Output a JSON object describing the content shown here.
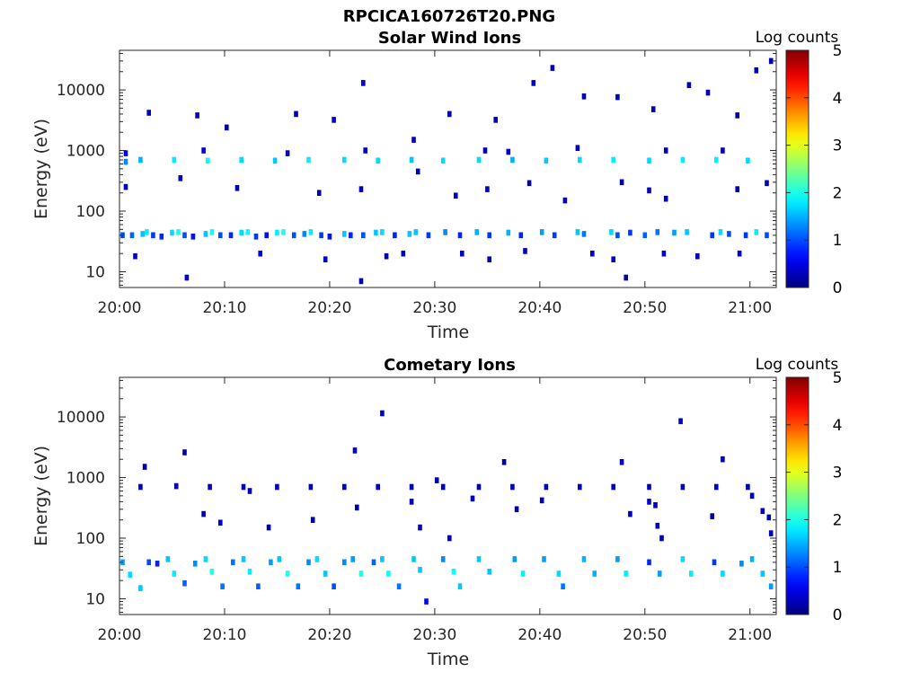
{
  "figure": {
    "title": "RPCICA160726T20.PNG"
  },
  "chart_data": [
    {
      "type": "heatmap",
      "title": "Solar Wind Ions",
      "xlabel": "Time",
      "ylabel": "Energy (eV)",
      "x_ticks": [
        "20:00",
        "20:10",
        "20:20",
        "20:30",
        "20:40",
        "20:50",
        "21:00"
      ],
      "x_tick_minutes": [
        0,
        10,
        20,
        30,
        40,
        50,
        60
      ],
      "xlim_minutes": [
        0,
        62.5
      ],
      "y_scale": "log",
      "ylim": [
        5.5,
        45000
      ],
      "y_ticks": [
        "10",
        "100",
        "1000",
        "10000"
      ],
      "y_tick_values": [
        10,
        100,
        1000,
        10000
      ],
      "colorbar": {
        "label": "Log counts",
        "ticks": [
          "0",
          "1",
          "2",
          "3",
          "4",
          "5"
        ],
        "range": [
          0,
          5
        ],
        "colormap": "jet"
      },
      "cells": [
        [
          0.3,
          40,
          1.0
        ],
        [
          1.2,
          40,
          1.1
        ],
        [
          2.2,
          42,
          1.6
        ],
        [
          2.6,
          45,
          1.8
        ],
        [
          3.2,
          40,
          0.9
        ],
        [
          4.0,
          38,
          0.8
        ],
        [
          5.0,
          44,
          1.7
        ],
        [
          5.6,
          45,
          2.0
        ],
        [
          6.2,
          40,
          1.0
        ],
        [
          7.0,
          38,
          0.7
        ],
        [
          8.2,
          42,
          1.6
        ],
        [
          8.8,
          45,
          1.9
        ],
        [
          9.6,
          40,
          1.0
        ],
        [
          10.6,
          40,
          0.8
        ],
        [
          11.6,
          44,
          1.7
        ],
        [
          12.2,
          45,
          1.9
        ],
        [
          13.0,
          38,
          0.9
        ],
        [
          14.0,
          40,
          0.7
        ],
        [
          15.0,
          44,
          1.8
        ],
        [
          15.6,
          45,
          2.0
        ],
        [
          16.6,
          40,
          1.0
        ],
        [
          17.6,
          42,
          1.3
        ],
        [
          18.2,
          45,
          1.8
        ],
        [
          19.2,
          40,
          0.9
        ],
        [
          20.0,
          38,
          0.7
        ],
        [
          21.4,
          42,
          1.6
        ],
        [
          22.0,
          40,
          0.8
        ],
        [
          23.2,
          40,
          1.0
        ],
        [
          24.4,
          44,
          1.6
        ],
        [
          25.0,
          45,
          1.7
        ],
        [
          26.2,
          40,
          0.8
        ],
        [
          27.6,
          42,
          1.6
        ],
        [
          28.2,
          45,
          1.6
        ],
        [
          29.4,
          40,
          0.9
        ],
        [
          31.0,
          45,
          1.3
        ],
        [
          32.4,
          40,
          0.8
        ],
        [
          34.0,
          45,
          1.5
        ],
        [
          35.2,
          40,
          0.9
        ],
        [
          37.0,
          44,
          1.5
        ],
        [
          38.2,
          40,
          0.8
        ],
        [
          40.2,
          45,
          1.4
        ],
        [
          41.4,
          40,
          0.9
        ],
        [
          43.6,
          45,
          1.6
        ],
        [
          44.2,
          42,
          1.2
        ],
        [
          46.8,
          45,
          1.7
        ],
        [
          47.4,
          40,
          1.0
        ],
        [
          48.6,
          44,
          0.9
        ],
        [
          50.0,
          40,
          1.1
        ],
        [
          51.2,
          45,
          1.2
        ],
        [
          52.8,
          44,
          1.4
        ],
        [
          54.0,
          45,
          1.6
        ],
        [
          56.4,
          40,
          0.9
        ],
        [
          57.2,
          45,
          1.7
        ],
        [
          58.0,
          42,
          1.0
        ],
        [
          59.6,
          40,
          0.9
        ],
        [
          60.6,
          45,
          1.8
        ],
        [
          61.6,
          40,
          1.0
        ],
        [
          1.5,
          18,
          0.4
        ],
        [
          6.4,
          8,
          0.3
        ],
        [
          13.4,
          20,
          0.5
        ],
        [
          19.6,
          16,
          0.4
        ],
        [
          23.0,
          7,
          0.3
        ],
        [
          25.4,
          18,
          0.2
        ],
        [
          27.0,
          20,
          0.3
        ],
        [
          32.6,
          20,
          0.4
        ],
        [
          35.2,
          16,
          0.3
        ],
        [
          38.6,
          22,
          0.4
        ],
        [
          45.0,
          20,
          0.3
        ],
        [
          47.0,
          16,
          0.3
        ],
        [
          48.2,
          8,
          0.2
        ],
        [
          51.8,
          20,
          0.4
        ],
        [
          55.0,
          18,
          0.3
        ],
        [
          59.0,
          20,
          0.4
        ],
        [
          0.6,
          650,
          1.3
        ],
        [
          2.0,
          700,
          1.5
        ],
        [
          5.2,
          700,
          1.8
        ],
        [
          8.4,
          680,
          1.9
        ],
        [
          11.6,
          700,
          1.7
        ],
        [
          14.8,
          680,
          1.6
        ],
        [
          18.0,
          700,
          1.8
        ],
        [
          21.4,
          700,
          1.7
        ],
        [
          24.6,
          680,
          1.7
        ],
        [
          27.8,
          700,
          1.6
        ],
        [
          30.8,
          680,
          1.7
        ],
        [
          34.2,
          700,
          1.7
        ],
        [
          37.4,
          700,
          1.5
        ],
        [
          40.6,
          680,
          1.6
        ],
        [
          43.8,
          700,
          1.7
        ],
        [
          47.0,
          700,
          1.8
        ],
        [
          50.4,
          680,
          1.7
        ],
        [
          53.6,
          700,
          1.8
        ],
        [
          56.8,
          700,
          1.8
        ],
        [
          59.8,
          680,
          1.7
        ],
        [
          0.6,
          900,
          0.5
        ],
        [
          8.0,
          1000,
          0.4
        ],
        [
          16.0,
          900,
          0.3
        ],
        [
          23.4,
          1000,
          0.4
        ],
        [
          28.0,
          1500,
          0.3
        ],
        [
          34.8,
          1000,
          0.3
        ],
        [
          37.0,
          950,
          0.4
        ],
        [
          43.6,
          1100,
          0.3
        ],
        [
          52.0,
          1000,
          0.3
        ],
        [
          57.4,
          1000,
          0.4
        ],
        [
          0.6,
          250,
          0.3
        ],
        [
          5.8,
          350,
          0.3
        ],
        [
          11.2,
          240,
          0.2
        ],
        [
          19.0,
          200,
          0.2
        ],
        [
          23.0,
          230,
          0.3
        ],
        [
          28.4,
          450,
          0.3
        ],
        [
          32.0,
          180,
          0.3
        ],
        [
          35.0,
          230,
          0.3
        ],
        [
          39.0,
          290,
          0.2
        ],
        [
          42.4,
          150,
          0.3
        ],
        [
          47.8,
          300,
          0.2
        ],
        [
          50.4,
          220,
          0.3
        ],
        [
          52.0,
          160,
          0.3
        ],
        [
          58.8,
          230,
          0.2
        ],
        [
          61.6,
          290,
          0.3
        ],
        [
          2.8,
          4200,
          0.3
        ],
        [
          7.4,
          3800,
          0.3
        ],
        [
          10.2,
          2400,
          0.2
        ],
        [
          16.8,
          4000,
          0.3
        ],
        [
          20.4,
          3200,
          0.3
        ],
        [
          23.2,
          13000,
          0.3
        ],
        [
          31.4,
          4000,
          0.2
        ],
        [
          35.8,
          3200,
          0.2
        ],
        [
          39.4,
          13000,
          0.3
        ],
        [
          41.2,
          23000,
          0.3
        ],
        [
          44.2,
          7800,
          0.3
        ],
        [
          47.4,
          7600,
          0.3
        ],
        [
          50.8,
          4800,
          0.2
        ],
        [
          54.2,
          12000,
          0.3
        ],
        [
          56.0,
          9000,
          0.3
        ],
        [
          58.8,
          3800,
          0.2
        ],
        [
          60.6,
          21000,
          0.3
        ],
        [
          62.0,
          30000,
          0.3
        ]
      ]
    },
    {
      "type": "heatmap",
      "title": "Cometary Ions",
      "xlabel": "Time",
      "ylabel": "Energy (eV)",
      "x_ticks": [
        "20:00",
        "20:10",
        "20:20",
        "20:30",
        "20:40",
        "20:50",
        "21:00"
      ],
      "x_tick_minutes": [
        0,
        10,
        20,
        30,
        40,
        50,
        60
      ],
      "xlim_minutes": [
        0,
        62.5
      ],
      "y_scale": "log",
      "ylim": [
        5.5,
        45000
      ],
      "y_ticks": [
        "10",
        "100",
        "1000",
        "10000"
      ],
      "y_tick_values": [
        10,
        100,
        1000,
        10000
      ],
      "colorbar": {
        "label": "Log counts",
        "ticks": [
          "0",
          "1",
          "2",
          "3",
          "4",
          "5"
        ],
        "range": [
          0,
          5
        ],
        "colormap": "jet"
      },
      "cells": [
        [
          0.3,
          40,
          1.4
        ],
        [
          1.0,
          25,
          1.7
        ],
        [
          2.0,
          15,
          1.6
        ],
        [
          2.8,
          40,
          1.0
        ],
        [
          3.6,
          38,
          0.8
        ],
        [
          4.6,
          45,
          1.6
        ],
        [
          5.2,
          26,
          1.8
        ],
        [
          6.2,
          18,
          1.1
        ],
        [
          7.2,
          38,
          1.3
        ],
        [
          8.2,
          45,
          1.7
        ],
        [
          8.8,
          28,
          2.0
        ],
        [
          9.8,
          16,
          1.2
        ],
        [
          10.8,
          40,
          1.2
        ],
        [
          11.8,
          45,
          1.6
        ],
        [
          12.4,
          28,
          1.8
        ],
        [
          13.2,
          16,
          1.1
        ],
        [
          14.4,
          40,
          1.4
        ],
        [
          15.2,
          45,
          1.6
        ],
        [
          16.0,
          26,
          2.0
        ],
        [
          17.0,
          16,
          1.2
        ],
        [
          18.0,
          40,
          1.3
        ],
        [
          18.8,
          45,
          1.7
        ],
        [
          19.6,
          26,
          1.6
        ],
        [
          20.4,
          16,
          1.0
        ],
        [
          21.4,
          40,
          1.3
        ],
        [
          22.2,
          45,
          1.4
        ],
        [
          23.0,
          26,
          2.0
        ],
        [
          24.2,
          40,
          1.1
        ],
        [
          25.0,
          45,
          1.6
        ],
        [
          25.6,
          26,
          1.9
        ],
        [
          26.6,
          16,
          1.2
        ],
        [
          28.0,
          45,
          1.6
        ],
        [
          28.6,
          30,
          1.6
        ],
        [
          29.2,
          9,
          0.6
        ],
        [
          30.8,
          45,
          1.3
        ],
        [
          31.8,
          28,
          1.9
        ],
        [
          32.4,
          16,
          1.6
        ],
        [
          34.2,
          45,
          1.6
        ],
        [
          35.2,
          28,
          1.6
        ],
        [
          37.6,
          45,
          1.4
        ],
        [
          38.4,
          26,
          1.8
        ],
        [
          40.4,
          45,
          1.4
        ],
        [
          41.8,
          26,
          1.7
        ],
        [
          42.2,
          16,
          1.2
        ],
        [
          44.2,
          45,
          1.5
        ],
        [
          45.2,
          26,
          1.5
        ],
        [
          47.4,
          45,
          1.4
        ],
        [
          48.2,
          26,
          1.8
        ],
        [
          50.4,
          40,
          0.8
        ],
        [
          51.4,
          26,
          1.4
        ],
        [
          53.6,
          45,
          1.7
        ],
        [
          54.4,
          26,
          1.8
        ],
        [
          56.6,
          40,
          0.9
        ],
        [
          57.4,
          26,
          1.7
        ],
        [
          59.2,
          38,
          1.3
        ],
        [
          60.2,
          45,
          1.5
        ],
        [
          61.2,
          26,
          1.6
        ],
        [
          62.0,
          16,
          1.4
        ],
        [
          2.0,
          700,
          0.3
        ],
        [
          5.4,
          720,
          0.3
        ],
        [
          8.6,
          700,
          0.3
        ],
        [
          11.8,
          700,
          0.4
        ],
        [
          15.0,
          700,
          0.3
        ],
        [
          18.2,
          700,
          0.3
        ],
        [
          21.4,
          700,
          0.3
        ],
        [
          24.6,
          700,
          0.4
        ],
        [
          27.8,
          700,
          0.3
        ],
        [
          30.8,
          700,
          0.3
        ],
        [
          34.2,
          700,
          0.3
        ],
        [
          37.4,
          700,
          0.4
        ],
        [
          40.6,
          700,
          0.3
        ],
        [
          43.8,
          700,
          0.3
        ],
        [
          47.0,
          700,
          0.3
        ],
        [
          50.4,
          700,
          0.3
        ],
        [
          53.6,
          700,
          0.3
        ],
        [
          56.8,
          700,
          0.4
        ],
        [
          59.8,
          700,
          0.3
        ],
        [
          2.4,
          1500,
          0.2
        ],
        [
          6.2,
          2600,
          0.2
        ],
        [
          8.0,
          250,
          0.2
        ],
        [
          9.6,
          180,
          0.3
        ],
        [
          12.4,
          600,
          0.3
        ],
        [
          14.2,
          150,
          0.2
        ],
        [
          18.4,
          200,
          0.2
        ],
        [
          22.4,
          2800,
          0.3
        ],
        [
          22.6,
          320,
          0.2
        ],
        [
          25.0,
          11500,
          0.4
        ],
        [
          27.8,
          400,
          0.3
        ],
        [
          28.6,
          150,
          0.3
        ],
        [
          30.2,
          900,
          0.3
        ],
        [
          31.4,
          100,
          0.2
        ],
        [
          33.6,
          450,
          0.3
        ],
        [
          36.6,
          1800,
          0.2
        ],
        [
          37.8,
          300,
          0.2
        ],
        [
          40.2,
          420,
          0.2
        ],
        [
          47.8,
          1800,
          0.3
        ],
        [
          48.6,
          250,
          0.3
        ],
        [
          50.4,
          400,
          0.4
        ],
        [
          51.0,
          350,
          0.3
        ],
        [
          51.2,
          160,
          0.2
        ],
        [
          51.6,
          100,
          0.2
        ],
        [
          53.4,
          8500,
          0.3
        ],
        [
          56.4,
          230,
          0.2
        ],
        [
          57.4,
          2000,
          0.2
        ],
        [
          60.2,
          500,
          0.3
        ],
        [
          61.2,
          280,
          0.3
        ],
        [
          61.8,
          220,
          0.2
        ],
        [
          62.0,
          120,
          0.3
        ]
      ]
    }
  ]
}
